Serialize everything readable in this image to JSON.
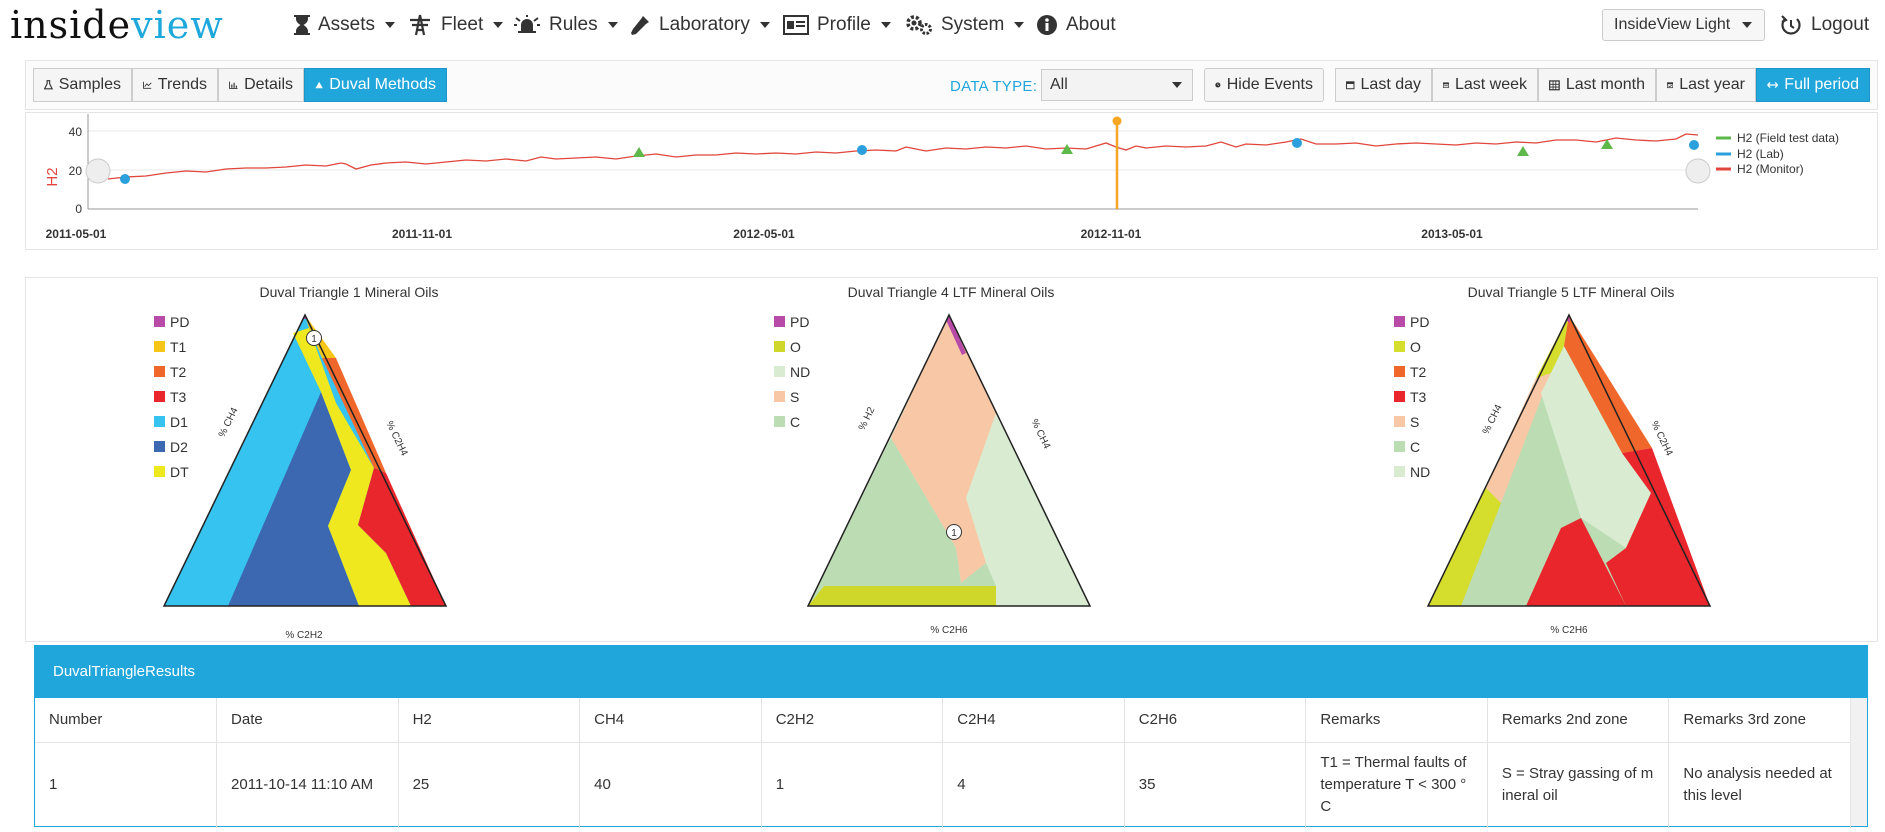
{
  "app": {
    "logo_part1": "inside",
    "logo_part2": "view"
  },
  "nav": {
    "items": [
      {
        "label": "Assets",
        "icon": "hourglass-icon"
      },
      {
        "label": "Fleet",
        "icon": "tower-icon"
      },
      {
        "label": "Rules",
        "icon": "alarm-bell-icon"
      },
      {
        "label": "Laboratory",
        "icon": "pipette-icon"
      },
      {
        "label": "Profile",
        "icon": "id-card-icon"
      },
      {
        "label": "System",
        "icon": "gears-icon"
      },
      {
        "label": "About",
        "icon": "info-icon"
      }
    ],
    "theme_select": "InsideView Light",
    "logout": "Logout"
  },
  "toolbar": {
    "tabs": [
      "Samples",
      "Trends",
      "Details",
      "Duval Methods"
    ],
    "active_tab": "Duval Methods",
    "data_type_label": "DATA TYPE:",
    "data_type_value": "All",
    "hide_events": "Hide Events",
    "periods": [
      "Last day",
      "Last week",
      "Last month",
      "Last year",
      "Full period"
    ],
    "active_period": "Full period"
  },
  "trend": {
    "ylabel": "H2",
    "yticks": [
      "40",
      "20",
      "0"
    ],
    "xticks": [
      "2011-05-01",
      "2011-11-01",
      "2012-05-01",
      "2012-11-01",
      "2013-05-01"
    ],
    "legend": [
      {
        "label": "H2 (Field test data)",
        "color": "#5fb84a"
      },
      {
        "label": "H2 (Lab)",
        "color": "#2ba0dc"
      },
      {
        "label": "H2 (Monitor)",
        "color": "#e0463b"
      }
    ]
  },
  "triangles": [
    {
      "title": "Duval Triangle 1 Mineral Oils",
      "left_axis": "% CH4",
      "right_axis": "% C2H4",
      "bottom_axis": "% C2H2",
      "legend": [
        {
          "label": "PD",
          "color": "#b84aa8"
        },
        {
          "label": "T1",
          "color": "#f5c518"
        },
        {
          "label": "T2",
          "color": "#f0672b"
        },
        {
          "label": "T3",
          "color": "#e8262c"
        },
        {
          "label": "D1",
          "color": "#36c3ef"
        },
        {
          "label": "D2",
          "color": "#3c67b1"
        },
        {
          "label": "DT",
          "color": "#efe81e"
        }
      ],
      "marker": "1"
    },
    {
      "title": "Duval Triangle 4 LTF Mineral Oils",
      "left_axis": "% H2",
      "right_axis": "% CH4",
      "bottom_axis": "% C2H6",
      "legend": [
        {
          "label": "PD",
          "color": "#b84aa8"
        },
        {
          "label": "O",
          "color": "#cfd82a"
        },
        {
          "label": "ND",
          "color": "#d9ecd2"
        },
        {
          "label": "S",
          "color": "#f8c8a6"
        },
        {
          "label": "C",
          "color": "#bcdcb4"
        }
      ],
      "marker": "1"
    },
    {
      "title": "Duval Triangle 5 LTF Mineral Oils",
      "left_axis": "% CH4",
      "right_axis": "% C2H4",
      "bottom_axis": "% C2H6",
      "legend": [
        {
          "label": "PD",
          "color": "#b84aa8"
        },
        {
          "label": "O",
          "color": "#d5dd2d"
        },
        {
          "label": "T2",
          "color": "#f0672b"
        },
        {
          "label": "T3",
          "color": "#e8262c"
        },
        {
          "label": "S",
          "color": "#f8c8a6"
        },
        {
          "label": "C",
          "color": "#bcdcb4"
        },
        {
          "label": "ND",
          "color": "#d9ecd2"
        }
      ]
    }
  ],
  "results": {
    "title": "DuvalTriangleResults",
    "columns": [
      "Number",
      "Date",
      "H2",
      "CH4",
      "C2H2",
      "C2H4",
      "C2H6",
      "Remarks",
      "Remarks 2nd zone",
      "Remarks 3rd zone"
    ],
    "rows": [
      [
        "1",
        "2011-10-14 11:10 AM",
        "25",
        "40",
        "1",
        "4",
        "35",
        "T1 = Thermal faults of temperature T < 300 ° C",
        "S = Stray gassing of m ineral oil",
        "No analysis needed at this level"
      ]
    ]
  }
}
